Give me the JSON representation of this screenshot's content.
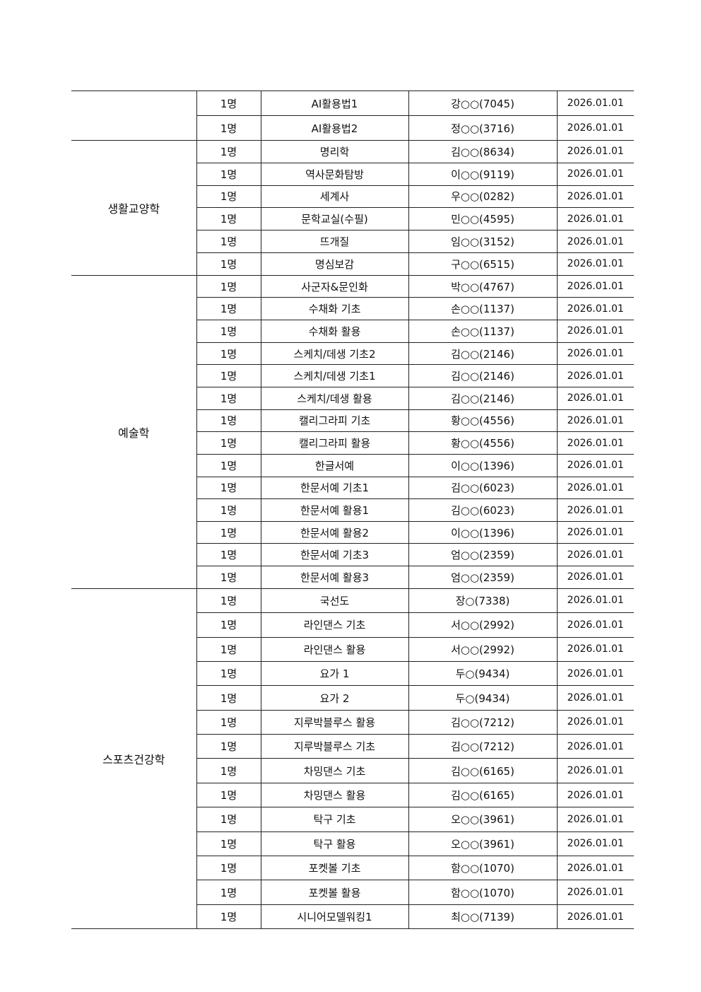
{
  "groups": [
    {
      "category": "",
      "rows": [
        {
          "count": "1명",
          "course": "AI활용법1",
          "instructor": "강○○(7045)",
          "date": "2026.01.01"
        },
        {
          "count": "1명",
          "course": "AI활용법2",
          "instructor": "정○○(3716)",
          "date": "2026.01.01"
        }
      ]
    },
    {
      "category": "생활교양학",
      "rows": [
        {
          "count": "1명",
          "course": "명리학",
          "instructor": "김○○(8634)",
          "date": "2026.01.01"
        },
        {
          "count": "1명",
          "course": "역사문화탐방",
          "instructor": "이○○(9119)",
          "date": "2026.01.01"
        },
        {
          "count": "1명",
          "course": "세계사",
          "instructor": "우○○(0282)",
          "date": "2026.01.01"
        },
        {
          "count": "1명",
          "course": "문학교실(수필)",
          "instructor": "민○○(4595)",
          "date": "2026.01.01"
        },
        {
          "count": "1명",
          "course": "뜨개질",
          "instructor": "임○○(3152)",
          "date": "2026.01.01"
        },
        {
          "count": "1명",
          "course": "명심보감",
          "instructor": "구○○(6515)",
          "date": "2026.01.01"
        }
      ]
    },
    {
      "category": "예술학",
      "rows": [
        {
          "count": "1명",
          "course": "사군자&문인화",
          "instructor": "박○○(4767)",
          "date": "2026.01.01"
        },
        {
          "count": "1명",
          "course": "수채화 기초",
          "instructor": "손○○(1137)",
          "date": "2026.01.01"
        },
        {
          "count": "1명",
          "course": "수채화 활용",
          "instructor": "손○○(1137)",
          "date": "2026.01.01"
        },
        {
          "count": "1명",
          "course": "스케치/데생 기초2",
          "instructor": "김○○(2146)",
          "date": "2026.01.01"
        },
        {
          "count": "1명",
          "course": "스케치/데생 기초1",
          "instructor": "김○○(2146)",
          "date": "2026.01.01"
        },
        {
          "count": "1명",
          "course": "스케치/데생 활용",
          "instructor": "김○○(2146)",
          "date": "2026.01.01"
        },
        {
          "count": "1명",
          "course": "캘리그라피 기초",
          "instructor": "황○○(4556)",
          "date": "2026.01.01"
        },
        {
          "count": "1명",
          "course": "캘리그라피 활용",
          "instructor": "황○○(4556)",
          "date": "2026.01.01"
        },
        {
          "count": "1명",
          "course": "한글서예",
          "instructor": "이○○(1396)",
          "date": "2026.01.01"
        },
        {
          "count": "1명",
          "course": "한문서예 기초1",
          "instructor": "김○○(6023)",
          "date": "2026.01.01"
        },
        {
          "count": "1명",
          "course": "한문서예 활용1",
          "instructor": "김○○(6023)",
          "date": "2026.01.01"
        },
        {
          "count": "1명",
          "course": "한문서예 활용2",
          "instructor": "이○○(1396)",
          "date": "2026.01.01"
        },
        {
          "count": "1명",
          "course": "한문서예 기초3",
          "instructor": "엄○○(2359)",
          "date": "2026.01.01"
        },
        {
          "count": "1명",
          "course": "한문서예 활용3",
          "instructor": "엄○○(2359)",
          "date": "2026.01.01"
        }
      ]
    },
    {
      "category": "스포츠건강학",
      "rows": [
        {
          "count": "1명",
          "course": "국선도",
          "instructor": "장○(7338)",
          "date": "2026.01.01"
        },
        {
          "count": "1명",
          "course": "라인댄스 기초",
          "instructor": "서○○(2992)",
          "date": "2026.01.01"
        },
        {
          "count": "1명",
          "course": "라인댄스 활용",
          "instructor": "서○○(2992)",
          "date": "2026.01.01"
        },
        {
          "count": "1명",
          "course": "요가 1",
          "instructor": "두○(9434)",
          "date": "2026.01.01"
        },
        {
          "count": "1명",
          "course": "요가 2",
          "instructor": "두○(9434)",
          "date": "2026.01.01"
        },
        {
          "count": "1명",
          "course": "지루박블루스 활용",
          "instructor": "김○○(7212)",
          "date": "2026.01.01"
        },
        {
          "count": "1명",
          "course": "지루박블루스 기초",
          "instructor": "김○○(7212)",
          "date": "2026.01.01"
        },
        {
          "count": "1명",
          "course": "차밍댄스 기초",
          "instructor": "김○○(6165)",
          "date": "2026.01.01"
        },
        {
          "count": "1명",
          "course": "차밍댄스 활용",
          "instructor": "김○○(6165)",
          "date": "2026.01.01"
        },
        {
          "count": "1명",
          "course": "탁구 기초",
          "instructor": "오○○(3961)",
          "date": "2026.01.01"
        },
        {
          "count": "1명",
          "course": "탁구 활용",
          "instructor": "오○○(3961)",
          "date": "2026.01.01"
        },
        {
          "count": "1명",
          "course": "포켓볼 기초",
          "instructor": "함○○(1070)",
          "date": "2026.01.01"
        },
        {
          "count": "1명",
          "course": "포켓볼 활용",
          "instructor": "함○○(1070)",
          "date": "2026.01.01"
        },
        {
          "count": "1명",
          "course": "시니어모델워킹1",
          "instructor": "최○○(7139)",
          "date": "2026.01.01"
        }
      ]
    }
  ]
}
